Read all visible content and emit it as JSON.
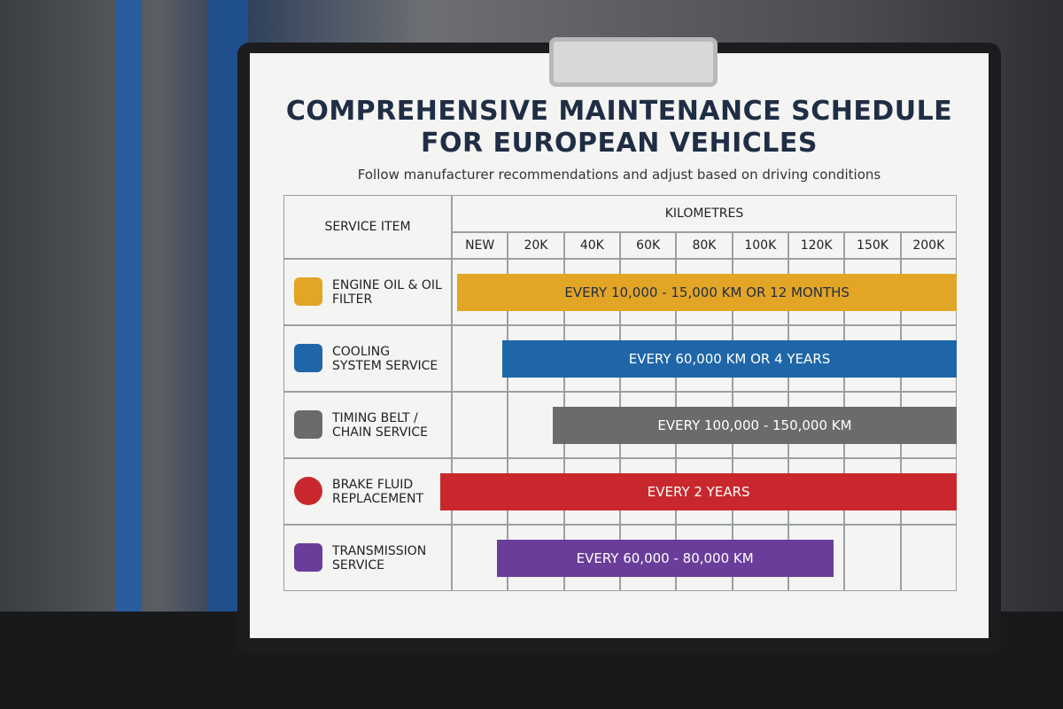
{
  "header": {
    "title": [
      "COMPREHENSIVE MAINTENANCE SCHEDULE",
      "FOR EUROPEAN VEHICLES"
    ],
    "subtitle": "Follow manufacturer recommendations and adjust based on driving conditions"
  },
  "table": {
    "item_header": "SERVICE ITEM",
    "group_header": "KILOMETRES",
    "columns": [
      "NEW",
      "20K",
      "40K",
      "60K",
      "80K",
      "100K",
      "120K",
      "150K",
      "200K"
    ],
    "rows": [
      {
        "item": "ENGINE OIL & OIL FILTER",
        "interval": "EVERY 10,000 - 15,000 KM OR 12 MONTHS"
      },
      {
        "item": "COOLING SYSTEM SERVICE",
        "interval": "EVERY 60,000 KM OR 4 YEARS"
      },
      {
        "item": "TIMING BELT / CHAIN SERVICE",
        "interval": "EVERY 100,000 - 150,000 KM"
      },
      {
        "item": "BRAKE FLUID REPLACEMENT",
        "interval": "EVERY 2 YEARS"
      },
      {
        "item": "TRANSMISSION SERVICE",
        "interval": "EVERY 60,000 - 80,000 KM"
      }
    ]
  }
}
